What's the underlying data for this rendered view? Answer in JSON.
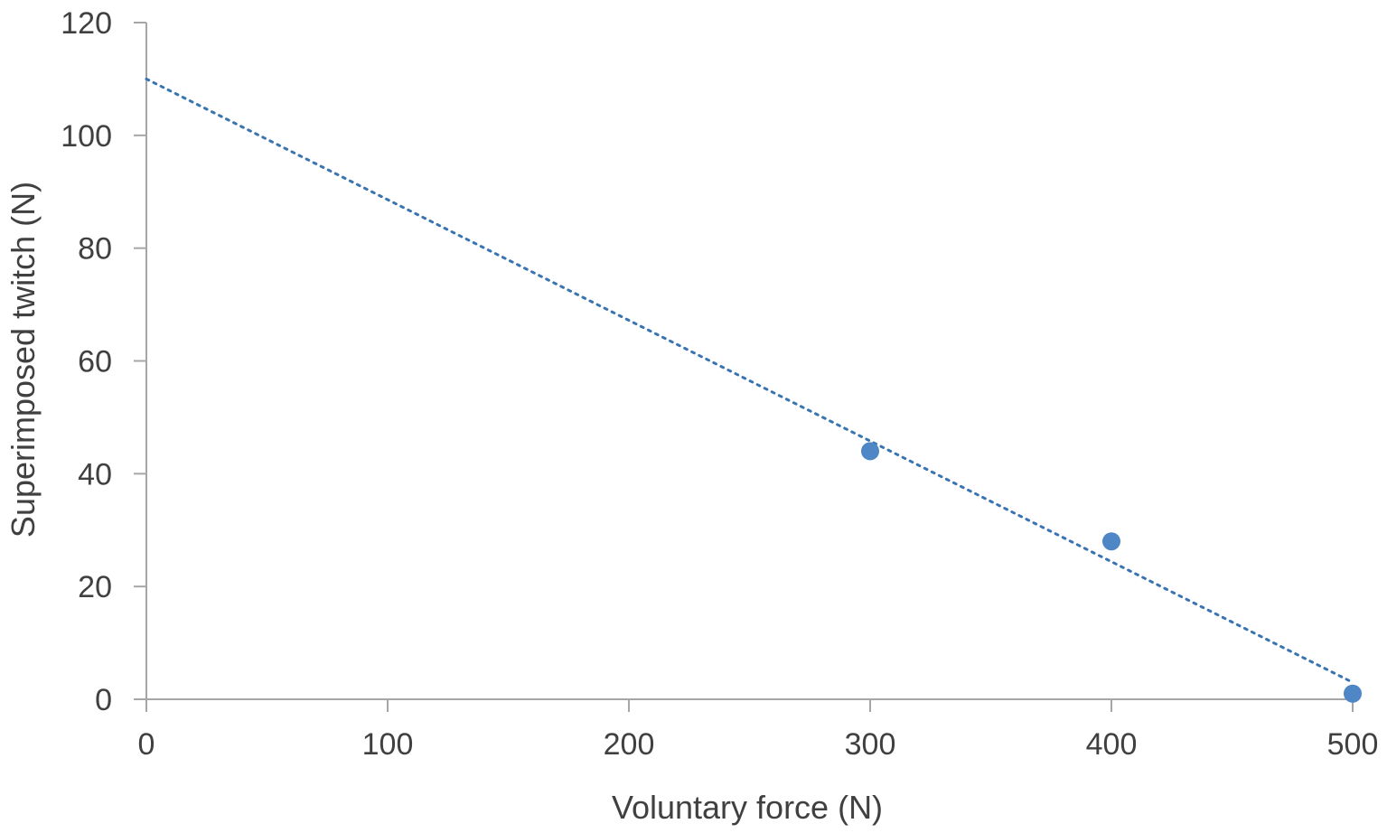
{
  "chart_data": {
    "type": "scatter",
    "xlabel": "Voluntary force (N)",
    "ylabel": "Superimposed twitch (N)",
    "xlim": [
      0,
      500
    ],
    "ylim": [
      0,
      120
    ],
    "x_ticks": [
      0,
      100,
      200,
      300,
      400,
      500
    ],
    "y_ticks": [
      0,
      20,
      40,
      60,
      80,
      100,
      120
    ],
    "grid": false,
    "legend": "none",
    "series": [
      {
        "x": [
          300,
          400,
          500
        ],
        "y": [
          44,
          28,
          1
        ],
        "color": "#4f86c6",
        "marker": "circle"
      }
    ],
    "trendline": {
      "style": "dotted",
      "color": "#3a74b0",
      "from": [
        0,
        110
      ],
      "to": [
        500,
        3
      ]
    }
  }
}
